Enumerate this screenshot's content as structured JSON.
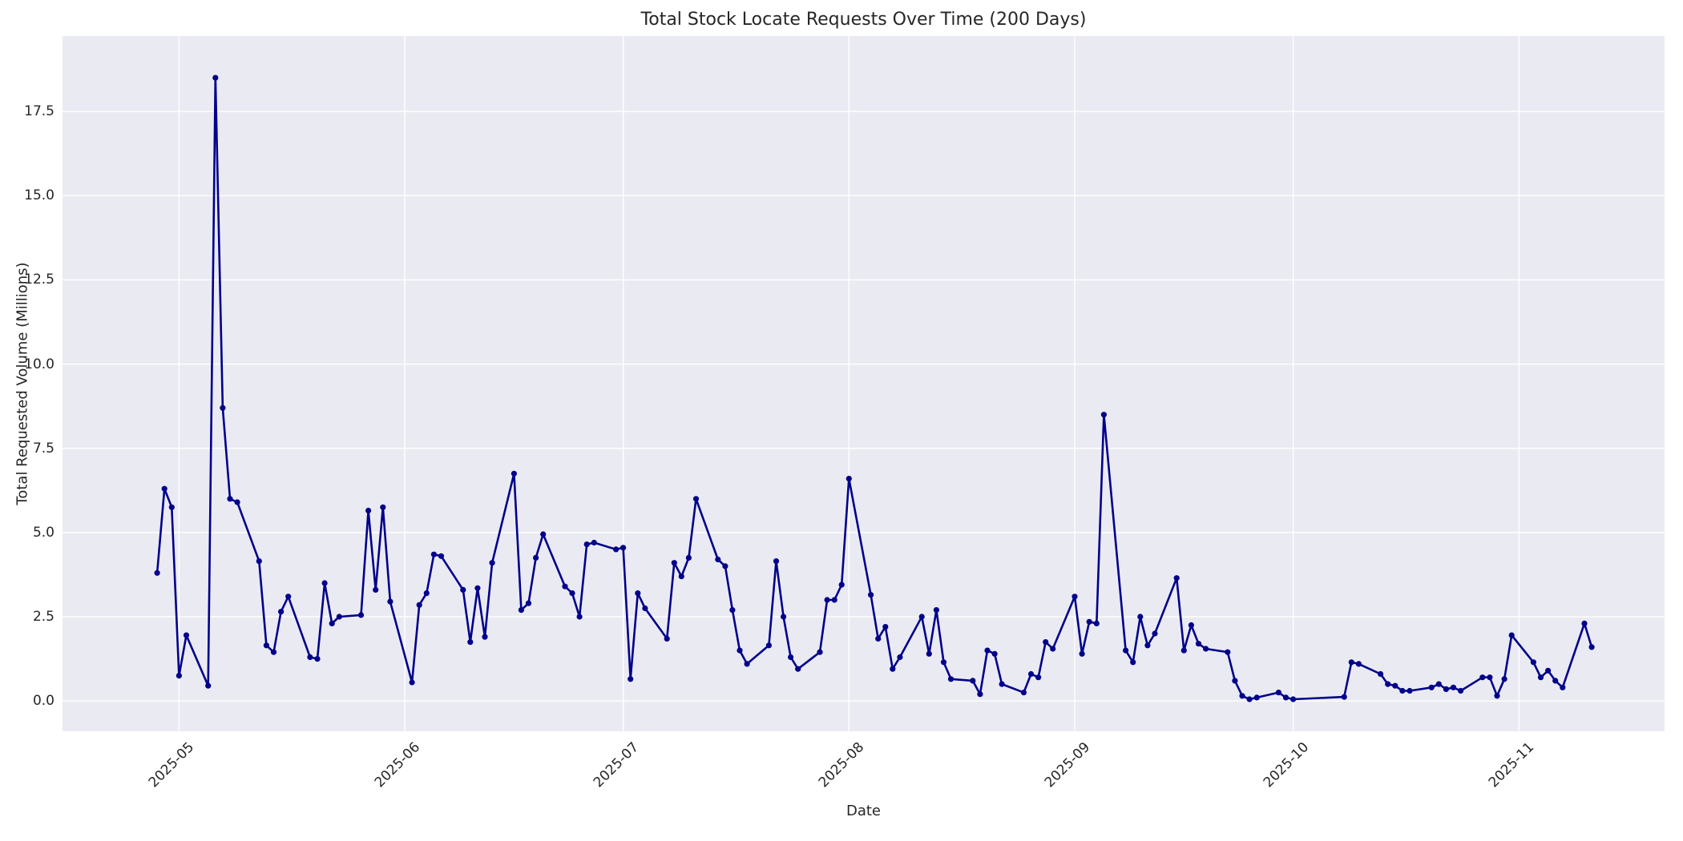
{
  "chart_data": {
    "type": "line",
    "title": "Total Stock Locate Requests Over Time (200 Days)",
    "xlabel": "Date",
    "ylabel": "Total Requested Volume (Millions)",
    "legend": "none",
    "grid": "on",
    "plot_bg_color": "#eaeaf2",
    "grid_color": "#ffffff",
    "line_color": "#00008b",
    "marker_color": "#00008b",
    "text_color": "#262626",
    "ylim": [
      -0.9,
      19.74
    ],
    "xlim_dates": [
      "2025-04-15",
      "2025-11-21"
    ],
    "yticks": [
      "0.0",
      "2.5",
      "5.0",
      "7.5",
      "10.0",
      "12.5",
      "15.0",
      "17.5"
    ],
    "ytick_values": [
      0,
      2.5,
      5,
      7.5,
      10,
      12.5,
      15,
      17.5
    ],
    "xticks": [
      "2025-05",
      "2025-06",
      "2025-07",
      "2025-08",
      "2025-09",
      "2025-10",
      "2025-11"
    ],
    "xtick_dates": [
      "2025-05-01",
      "2025-06-01",
      "2025-07-01",
      "2025-08-01",
      "2025-09-01",
      "2025-10-01",
      "2025-11-01"
    ],
    "series": [
      {
        "name": "Total Stock Locate Requests",
        "points": [
          [
            "2025-04-28",
            3.8
          ],
          [
            "2025-04-29",
            6.3
          ],
          [
            "2025-04-30",
            5.75
          ],
          [
            "2025-05-01",
            0.75
          ],
          [
            "2025-05-02",
            1.95
          ],
          [
            "2025-05-05",
            0.45
          ],
          [
            "2025-05-06",
            18.5
          ],
          [
            "2025-05-07",
            8.7
          ],
          [
            "2025-05-08",
            6.0
          ],
          [
            "2025-05-09",
            5.9
          ],
          [
            "2025-05-12",
            4.15
          ],
          [
            "2025-05-13",
            1.65
          ],
          [
            "2025-05-14",
            1.45
          ],
          [
            "2025-05-15",
            2.65
          ],
          [
            "2025-05-16",
            3.1
          ],
          [
            "2025-05-19",
            1.3
          ],
          [
            "2025-05-20",
            1.25
          ],
          [
            "2025-05-21",
            3.5
          ],
          [
            "2025-05-22",
            2.3
          ],
          [
            "2025-05-23",
            2.5
          ],
          [
            "2025-05-26",
            2.55
          ],
          [
            "2025-05-27",
            5.65
          ],
          [
            "2025-05-28",
            3.3
          ],
          [
            "2025-05-29",
            5.75
          ],
          [
            "2025-05-30",
            2.95
          ],
          [
            "2025-06-02",
            0.55
          ],
          [
            "2025-06-03",
            2.85
          ],
          [
            "2025-06-04",
            3.2
          ],
          [
            "2025-06-05",
            4.35
          ],
          [
            "2025-06-06",
            4.3
          ],
          [
            "2025-06-09",
            3.3
          ],
          [
            "2025-06-10",
            1.75
          ],
          [
            "2025-06-11",
            3.35
          ],
          [
            "2025-06-12",
            1.9
          ],
          [
            "2025-06-13",
            4.1
          ],
          [
            "2025-06-16",
            6.75
          ],
          [
            "2025-06-17",
            2.7
          ],
          [
            "2025-06-18",
            2.9
          ],
          [
            "2025-06-19",
            4.25
          ],
          [
            "2025-06-20",
            4.95
          ],
          [
            "2025-06-23",
            3.4
          ],
          [
            "2025-06-24",
            3.2
          ],
          [
            "2025-06-25",
            2.5
          ],
          [
            "2025-06-26",
            4.65
          ],
          [
            "2025-06-27",
            4.7
          ],
          [
            "2025-06-30",
            4.5
          ],
          [
            "2025-07-01",
            4.55
          ],
          [
            "2025-07-02",
            0.65
          ],
          [
            "2025-07-03",
            3.2
          ],
          [
            "2025-07-04",
            2.75
          ],
          [
            "2025-07-07",
            1.85
          ],
          [
            "2025-07-08",
            4.1
          ],
          [
            "2025-07-09",
            3.7
          ],
          [
            "2025-07-10",
            4.25
          ],
          [
            "2025-07-11",
            6.0
          ],
          [
            "2025-07-14",
            4.2
          ],
          [
            "2025-07-15",
            4.0
          ],
          [
            "2025-07-16",
            2.7
          ],
          [
            "2025-07-17",
            1.5
          ],
          [
            "2025-07-18",
            1.1
          ],
          [
            "2025-07-21",
            1.65
          ],
          [
            "2025-07-22",
            4.15
          ],
          [
            "2025-07-23",
            2.5
          ],
          [
            "2025-07-24",
            1.3
          ],
          [
            "2025-07-25",
            0.95
          ],
          [
            "2025-07-28",
            1.45
          ],
          [
            "2025-07-29",
            3.0
          ],
          [
            "2025-07-30",
            3.0
          ],
          [
            "2025-07-31",
            3.45
          ],
          [
            "2025-08-01",
            6.6
          ],
          [
            "2025-08-04",
            3.15
          ],
          [
            "2025-08-05",
            1.85
          ],
          [
            "2025-08-06",
            2.2
          ],
          [
            "2025-08-07",
            0.95
          ],
          [
            "2025-08-08",
            1.3
          ],
          [
            "2025-08-11",
            2.5
          ],
          [
            "2025-08-12",
            1.4
          ],
          [
            "2025-08-13",
            2.7
          ],
          [
            "2025-08-14",
            1.15
          ],
          [
            "2025-08-15",
            0.65
          ],
          [
            "2025-08-18",
            0.6
          ],
          [
            "2025-08-19",
            0.2
          ],
          [
            "2025-08-20",
            1.5
          ],
          [
            "2025-08-21",
            1.4
          ],
          [
            "2025-08-22",
            0.5
          ],
          [
            "2025-08-25",
            0.25
          ],
          [
            "2025-08-26",
            0.8
          ],
          [
            "2025-08-27",
            0.7
          ],
          [
            "2025-08-28",
            1.75
          ],
          [
            "2025-08-29",
            1.55
          ],
          [
            "2025-09-01",
            3.1
          ],
          [
            "2025-09-02",
            1.4
          ],
          [
            "2025-09-03",
            2.35
          ],
          [
            "2025-09-04",
            2.3
          ],
          [
            "2025-09-05",
            8.5
          ],
          [
            "2025-09-08",
            1.5
          ],
          [
            "2025-09-09",
            1.15
          ],
          [
            "2025-09-10",
            2.5
          ],
          [
            "2025-09-11",
            1.65
          ],
          [
            "2025-09-12",
            2.0
          ],
          [
            "2025-09-15",
            3.65
          ],
          [
            "2025-09-16",
            1.5
          ],
          [
            "2025-09-17",
            2.25
          ],
          [
            "2025-09-18",
            1.7
          ],
          [
            "2025-09-19",
            1.55
          ],
          [
            "2025-09-22",
            1.45
          ],
          [
            "2025-09-23",
            0.6
          ],
          [
            "2025-09-24",
            0.15
          ],
          [
            "2025-09-25",
            0.05
          ],
          [
            "2025-09-26",
            0.1
          ],
          [
            "2025-09-29",
            0.25
          ],
          [
            "2025-09-30",
            0.1
          ],
          [
            "2025-10-01",
            0.05
          ],
          [
            "2025-10-08",
            0.12
          ],
          [
            "2025-10-09",
            1.15
          ],
          [
            "2025-10-10",
            1.1
          ],
          [
            "2025-10-13",
            0.8
          ],
          [
            "2025-10-14",
            0.5
          ],
          [
            "2025-10-15",
            0.45
          ],
          [
            "2025-10-16",
            0.3
          ],
          [
            "2025-10-17",
            0.3
          ],
          [
            "2025-10-20",
            0.4
          ],
          [
            "2025-10-21",
            0.5
          ],
          [
            "2025-10-22",
            0.35
          ],
          [
            "2025-10-23",
            0.4
          ],
          [
            "2025-10-24",
            0.3
          ],
          [
            "2025-10-27",
            0.7
          ],
          [
            "2025-10-28",
            0.7
          ],
          [
            "2025-10-29",
            0.15
          ],
          [
            "2025-10-30",
            0.65
          ],
          [
            "2025-10-31",
            1.95
          ],
          [
            "2025-11-03",
            1.15
          ],
          [
            "2025-11-04",
            0.7
          ],
          [
            "2025-11-05",
            0.9
          ],
          [
            "2025-11-06",
            0.6
          ],
          [
            "2025-11-07",
            0.4
          ],
          [
            "2025-11-10",
            2.3
          ],
          [
            "2025-11-11",
            1.6
          ]
        ]
      }
    ]
  }
}
